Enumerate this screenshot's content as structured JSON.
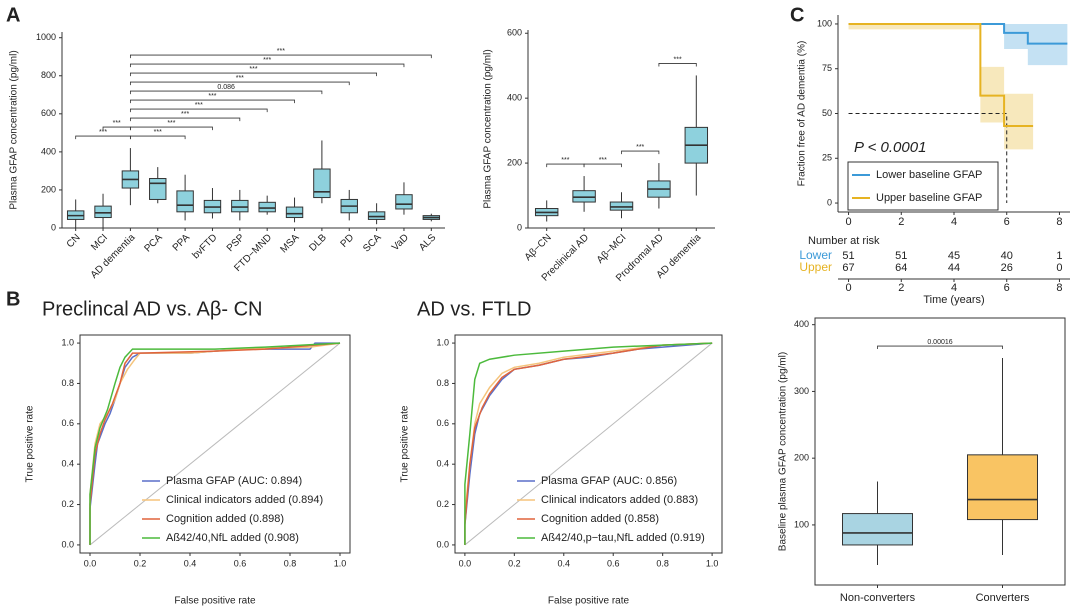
{
  "panel_labels": [
    "A",
    "B",
    "C"
  ],
  "chart_data": [
    {
      "type": "box",
      "ylabel": "Plasma GFAP concentration (pg/ml)",
      "categories": [
        "CN",
        "MCI",
        "AD dementia",
        "PCA",
        "PPA",
        "bvFTD",
        "PSP",
        "FTD−MND",
        "MSA",
        "DLB",
        "PD",
        "SCA",
        "VaD",
        "ALS"
      ],
      "whisker_low": [
        0,
        0,
        120,
        130,
        40,
        50,
        40,
        70,
        30,
        130,
        40,
        20,
        70,
        35
      ],
      "q1": [
        45,
        55,
        210,
        150,
        85,
        80,
        85,
        85,
        55,
        160,
        80,
        45,
        100,
        45
      ],
      "median": [
        65,
        80,
        255,
        235,
        120,
        110,
        110,
        105,
        75,
        190,
        115,
        60,
        125,
        55
      ],
      "q3": [
        90,
        115,
        300,
        260,
        195,
        145,
        145,
        135,
        110,
        310,
        150,
        85,
        175,
        65
      ],
      "whisker_high": [
        150,
        180,
        420,
        320,
        280,
        210,
        200,
        170,
        160,
        460,
        200,
        130,
        240,
        75
      ],
      "color": "#8ed1dd",
      "ylim": [
        0,
        1030
      ],
      "yticks": [
        0,
        200,
        400,
        600,
        800,
        1000
      ],
      "comparisons": [
        {
          "from": 0,
          "to": 2,
          "label": "***"
        },
        {
          "from": 1,
          "to": 2,
          "label": "***"
        },
        {
          "from": 2,
          "to": 4,
          "label": "***"
        },
        {
          "from": 2,
          "to": 5,
          "label": "***"
        },
        {
          "from": 2,
          "to": 6,
          "label": "***"
        },
        {
          "from": 2,
          "to": 7,
          "label": "***"
        },
        {
          "from": 2,
          "to": 8,
          "label": "***"
        },
        {
          "from": 2,
          "to": 9,
          "label": "0.086"
        },
        {
          "from": 2,
          "to": 10,
          "label": "***"
        },
        {
          "from": 2,
          "to": 11,
          "label": "***"
        },
        {
          "from": 2,
          "to": 12,
          "label": "***"
        },
        {
          "from": 2,
          "to": 13,
          "label": "***"
        }
      ]
    },
    {
      "type": "box",
      "ylabel": "Plasma GFAP concentration (pg/ml)",
      "categories": [
        "Aβ−CN",
        "Preclinical AD",
        "Aβ−MCI",
        "Prodromal AD",
        "AD dementia"
      ],
      "whisker_low": [
        20,
        50,
        30,
        60,
        100
      ],
      "q1": [
        38,
        80,
        55,
        95,
        200
      ],
      "median": [
        48,
        95,
        65,
        120,
        255
      ],
      "q3": [
        60,
        115,
        80,
        145,
        310
      ],
      "whisker_high": [
        85,
        160,
        110,
        200,
        470
      ],
      "color": "#8ed1dd",
      "ylim": [
        0,
        610
      ],
      "yticks": [
        0,
        200,
        400,
        600
      ],
      "comparisons": [
        {
          "from": 0,
          "to": 1,
          "label": "***"
        },
        {
          "from": 1,
          "to": 2,
          "label": "***"
        },
        {
          "from": 2,
          "to": 3,
          "label": "***"
        },
        {
          "from": 3,
          "to": 4,
          "label": "***"
        }
      ]
    },
    {
      "type": "step",
      "ylabel": "Fraction free of AD dementia (%)",
      "xlabel": "Time (years)",
      "annotation": "P < 0.0001",
      "series": [
        {
          "name": "Lower baseline GFAP",
          "color": "#3c9ad8",
          "x": [
            0,
            5.9,
            6.8,
            8.3
          ],
          "values": [
            100,
            95,
            89,
            89
          ],
          "ci_lower": [
            100,
            86,
            77,
            77
          ],
          "ci_upper": [
            100,
            100,
            100,
            100
          ]
        },
        {
          "name": "Upper baseline GFAP",
          "color": "#e6b322",
          "x": [
            0,
            5,
            5.9,
            7
          ],
          "values": [
            100,
            60,
            43,
            43
          ],
          "ci_lower": [
            97,
            45,
            30,
            30
          ],
          "ci_upper": [
            100,
            76,
            61,
            61
          ]
        }
      ],
      "reference": {
        "x": 6,
        "y": 50
      },
      "xlim": [
        -0.4,
        8.4
      ],
      "xticks": [
        0,
        2,
        4,
        6,
        8
      ],
      "ylim": [
        -5,
        105
      ],
      "yticks": [
        0,
        25,
        50,
        75,
        100
      ],
      "risk_table": {
        "title": "Number at risk",
        "rows": [
          {
            "name": "Lower",
            "values": [
              51,
              51,
              45,
              40,
              1
            ]
          },
          {
            "name": "Upper",
            "values": [
              67,
              64,
              44,
              26,
              0
            ]
          }
        ]
      }
    },
    {
      "type": "line",
      "title": "Preclincal AD vs. Aβ- CN",
      "xlabel": "False positive rate",
      "ylabel": "True positive rate",
      "series": [
        {
          "name": "Plasma GFAP (AUC: 0.894)",
          "color": "#5a6fc9",
          "x": [
            0,
            0,
            0.02,
            0.03,
            0.06,
            0.08,
            0.1,
            0.12,
            0.14,
            0.17,
            0.2,
            0.4,
            0.6,
            0.88,
            0.9,
            1
          ],
          "values": [
            0,
            0.18,
            0.4,
            0.5,
            0.6,
            0.65,
            0.72,
            0.8,
            0.88,
            0.93,
            0.95,
            0.95,
            0.97,
            0.97,
            1,
            1
          ]
        },
        {
          "name": "Clinical indicators added (0.894)",
          "color": "#f5c47c",
          "x": [
            0,
            0,
            0.02,
            0.04,
            0.07,
            0.1,
            0.12,
            0.15,
            0.18,
            0.2,
            0.4,
            0.6,
            0.88,
            1
          ],
          "values": [
            0,
            0.25,
            0.5,
            0.6,
            0.65,
            0.72,
            0.8,
            0.87,
            0.92,
            0.95,
            0.95,
            0.97,
            0.98,
            1
          ]
        },
        {
          "name": "Cognition added (0.898)",
          "color": "#e0643c",
          "x": [
            0,
            0,
            0.02,
            0.04,
            0.06,
            0.09,
            0.12,
            0.14,
            0.17,
            0.2,
            0.5,
            0.7,
            1
          ],
          "values": [
            0,
            0.2,
            0.45,
            0.55,
            0.62,
            0.7,
            0.8,
            0.9,
            0.95,
            0.95,
            0.96,
            0.97,
            1
          ]
        },
        {
          "name": "Aß42/40,NfL added (0.908)",
          "color": "#4cba3c",
          "x": [
            0,
            0,
            0.02,
            0.04,
            0.07,
            0.1,
            0.12,
            0.14,
            0.17,
            0.5,
            0.7,
            1
          ],
          "values": [
            0,
            0.25,
            0.48,
            0.58,
            0.67,
            0.8,
            0.88,
            0.93,
            0.97,
            0.97,
            0.98,
            1
          ]
        }
      ],
      "xlim": [
        -0.04,
        1.04
      ],
      "ylim": [
        -0.04,
        1.04
      ],
      "xticks": [
        {
          "value": 0,
          "label": "0.0"
        },
        0.2,
        0.4,
        0.6,
        0.8,
        {
          "value": 1,
          "label": "1.0"
        }
      ],
      "yticks": [
        {
          "value": 0,
          "label": "0.0"
        },
        0.2,
        0.4,
        0.6,
        0.8,
        {
          "value": 1,
          "label": "1.0"
        }
      ]
    },
    {
      "type": "line",
      "title": "AD vs. FTLD",
      "xlabel": "False positive rate",
      "ylabel": "True positive rate",
      "series": [
        {
          "name": "Plasma GFAP (AUC: 0.856)",
          "color": "#5a6fc9",
          "x": [
            0,
            0,
            0.02,
            0.04,
            0.06,
            0.1,
            0.15,
            0.2,
            0.3,
            0.4,
            0.5,
            0.6,
            0.7,
            0.8,
            0.9,
            1
          ],
          "values": [
            0,
            0.1,
            0.35,
            0.55,
            0.65,
            0.74,
            0.82,
            0.87,
            0.89,
            0.92,
            0.93,
            0.95,
            0.97,
            0.98,
            0.99,
            1
          ]
        },
        {
          "name": "Clinical indicators added (0.883)",
          "color": "#f5c47c",
          "x": [
            0,
            0,
            0.02,
            0.04,
            0.06,
            0.1,
            0.15,
            0.2,
            0.3,
            0.4,
            0.6,
            0.8,
            1
          ],
          "values": [
            0,
            0.15,
            0.4,
            0.6,
            0.7,
            0.78,
            0.85,
            0.88,
            0.9,
            0.93,
            0.96,
            0.99,
            1
          ]
        },
        {
          "name": "Cognition added (0.858)",
          "color": "#e0643c",
          "x": [
            0,
            0,
            0.02,
            0.04,
            0.07,
            0.1,
            0.15,
            0.2,
            0.3,
            0.4,
            0.6,
            0.8,
            1
          ],
          "values": [
            0,
            0.1,
            0.4,
            0.58,
            0.68,
            0.75,
            0.83,
            0.87,
            0.89,
            0.92,
            0.95,
            0.99,
            1
          ]
        },
        {
          "name": "Aß42/40,p−tau,NfL added (0.919)",
          "color": "#4cba3c",
          "x": [
            0,
            0,
            0.02,
            0.04,
            0.06,
            0.1,
            0.2,
            0.4,
            0.6,
            0.8,
            1
          ],
          "values": [
            0,
            0.3,
            0.55,
            0.82,
            0.9,
            0.92,
            0.94,
            0.96,
            0.98,
            0.99,
            1
          ]
        }
      ],
      "xlim": [
        -0.04,
        1.04
      ],
      "ylim": [
        -0.04,
        1.04
      ],
      "xticks": [
        {
          "value": 0,
          "label": "0.0"
        },
        0.2,
        0.4,
        0.6,
        0.8,
        {
          "value": 1,
          "label": "1.0"
        }
      ],
      "yticks": [
        {
          "value": 0,
          "label": "0.0"
        },
        0.2,
        0.4,
        0.6,
        0.8,
        {
          "value": 1,
          "label": "1.0"
        }
      ]
    },
    {
      "type": "box",
      "ylabel": "Baseline plasma GFAP concentration (pg/ml)",
      "categories": [
        "Non-converters",
        "Converters"
      ],
      "whisker_low": [
        40,
        55
      ],
      "q1": [
        70,
        108
      ],
      "median": [
        88,
        138
      ],
      "q3": [
        117,
        205
      ],
      "whisker_high": [
        165,
        350
      ],
      "colors": [
        "#a9d4e2",
        "#f9c463"
      ],
      "ylim": [
        10,
        410
      ],
      "yticks": [
        100,
        200,
        300,
        400
      ],
      "comparisons": [
        {
          "from": 0,
          "to": 1,
          "label": "0.00016"
        }
      ]
    }
  ]
}
